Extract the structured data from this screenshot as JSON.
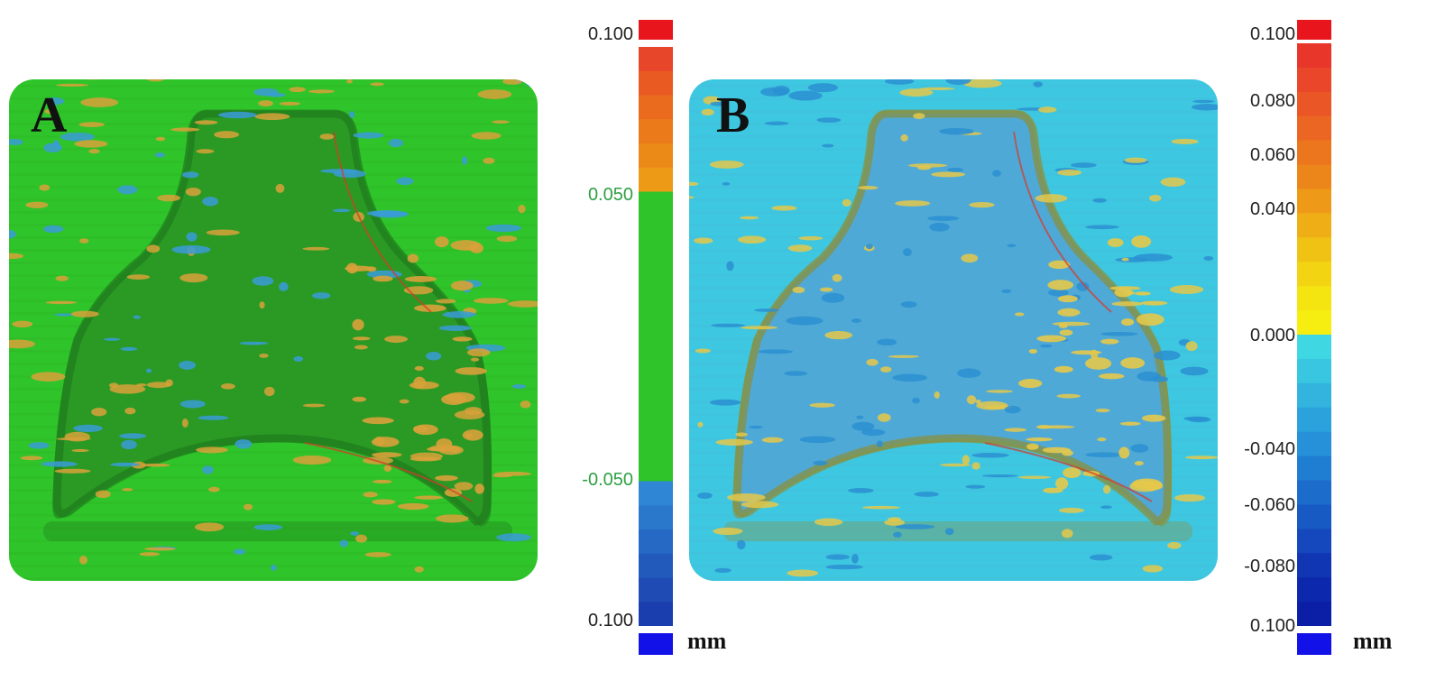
{
  "panels": [
    {
      "label": "A",
      "colors": {
        "base": "#2fc42a",
        "basin": "#2a9a24",
        "rim": "#1f7a1c",
        "warm": "#d8a13a",
        "cool": "#3a9bd8"
      }
    },
    {
      "label": "B",
      "colors": {
        "base": "#3ec7e0",
        "basin": "#4fa9d6",
        "rim": "#8b8f3a",
        "warm": "#e4c84a",
        "cool": "#2a8fd1"
      }
    }
  ],
  "scales": [
    {
      "ticks": [
        {
          "text": "0.100",
          "color": "#222222"
        },
        {
          "text": "0.050",
          "color": "#2ea043"
        },
        {
          "text": "-0.050",
          "color": "#2ea043"
        },
        {
          "text": "0.100",
          "color": "#222222"
        }
      ],
      "unit": "mm",
      "band_colors": [
        "#e8462a",
        "#e95a22",
        "#ea6a1e",
        "#eb7a1a",
        "#ec8a18",
        "#ed9a16",
        "#2fc42a",
        "#2fc42a",
        "#2fc42a",
        "#2fc42a",
        "#2fc42a",
        "#2fc42a",
        "#2fc42a",
        "#2fc42a",
        "#2fc42a",
        "#2fc42a",
        "#2fc42a",
        "#2fc42a",
        "#2e86d4",
        "#2a78cc",
        "#2669c4",
        "#225abc",
        "#1e4cb4",
        "#1a3ead"
      ],
      "top_swatch": "#e8161c",
      "bottom_swatch": "#1212e8"
    },
    {
      "ticks": [
        {
          "text": "0.100",
          "color": "#222222"
        },
        {
          "text": "0.080",
          "color": "#222222"
        },
        {
          "text": "0.060",
          "color": "#222222"
        },
        {
          "text": "0.040",
          "color": "#222222"
        },
        {
          "text": "0.000",
          "color": "#222222"
        },
        {
          "text": "-0.040",
          "color": "#222222"
        },
        {
          "text": "-0.060",
          "color": "#222222"
        },
        {
          "text": "-0.080",
          "color": "#222222"
        },
        {
          "text": "0.100",
          "color": "#222222"
        }
      ],
      "unit": "mm",
      "band_colors": [
        "#e8362a",
        "#e9462a",
        "#ea5626",
        "#eb6622",
        "#ec761e",
        "#ed861a",
        "#ee9a18",
        "#efae16",
        "#f0c214",
        "#f2d412",
        "#f4e410",
        "#f6ee10",
        "#3fd8e2",
        "#38c6e0",
        "#32b4de",
        "#2ca2dc",
        "#2690d8",
        "#207ed2",
        "#1c6ccc",
        "#185ac4",
        "#1448bc",
        "#1036b4",
        "#0c28ac",
        "#0a1ea6"
      ],
      "top_swatch": "#e8161c",
      "bottom_swatch": "#1212e8"
    }
  ]
}
